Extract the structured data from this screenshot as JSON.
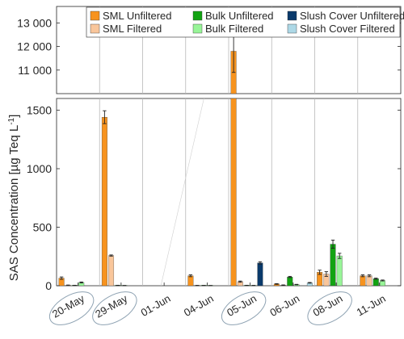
{
  "chart_data": {
    "type": "bar",
    "ylabel": "SAS Concentration [µg Teq L",
    "ylabel_sup": "-1",
    "ylabel_end": "]",
    "categories": [
      "20-May",
      "29-May",
      "01-Jun",
      "04-Jun",
      "05-Jun",
      "06-Jun",
      "08-Jun",
      "11-Jun"
    ],
    "circled_categories": [
      "20-May",
      "29-May",
      "05-Jun",
      "08-Jun"
    ],
    "axis_break": true,
    "upper_panel": {
      "ylim": [
        10000,
        13700
      ],
      "yticks": [
        11000,
        12000,
        13000
      ],
      "ytick_labels": [
        "11 000",
        "12 000",
        "13 000"
      ]
    },
    "lower_panel": {
      "ylim": [
        0,
        1600
      ],
      "yticks": [
        0,
        500,
        1000,
        1500
      ],
      "ytick_labels": [
        "0",
        "500",
        "1000",
        "1500"
      ]
    },
    "grid": "vertical lines between categories",
    "legend_position": "top-right",
    "series": [
      {
        "name": "SML Unfiltered",
        "color": "#F7931E",
        "values": [
          65,
          1440,
          0,
          85,
          11800,
          15,
          115,
          85
        ],
        "errors": [
          10,
          55,
          0,
          8,
          900,
          3,
          18,
          8
        ]
      },
      {
        "name": "SML Filtered",
        "color": "#F9C69B",
        "values": [
          5,
          258,
          0,
          2,
          35,
          5,
          100,
          85
        ],
        "errors": [
          1,
          5,
          0,
          1,
          5,
          2,
          20,
          8
        ]
      },
      {
        "name": "Bulk Unfiltered",
        "color": "#12A312",
        "values": [
          3,
          3,
          0,
          2,
          3,
          75,
          355,
          60
        ],
        "errors": [
          1,
          1,
          0,
          1,
          1,
          5,
          35,
          5
        ]
      },
      {
        "name": "Bulk Filtered",
        "color": "#98F598",
        "values": [
          28,
          1,
          0,
          1,
          2,
          10,
          255,
          45
        ],
        "errors": [
          4,
          1,
          0,
          1,
          1,
          2,
          22,
          4
        ]
      },
      {
        "name": "Slush Cover Unfiltered",
        "color": "#0A3A6B",
        "values": [
          0,
          0,
          0,
          0,
          195,
          0,
          0,
          0
        ],
        "errors": [
          0,
          0,
          0,
          0,
          10,
          0,
          0,
          0
        ]
      },
      {
        "name": "Slush Cover Filtered",
        "color": "#ADD8E6",
        "values": [
          0,
          0,
          0,
          0,
          0,
          25,
          0,
          0
        ],
        "errors": [
          0,
          0,
          0,
          0,
          0,
          3,
          0,
          0
        ]
      }
    ]
  }
}
